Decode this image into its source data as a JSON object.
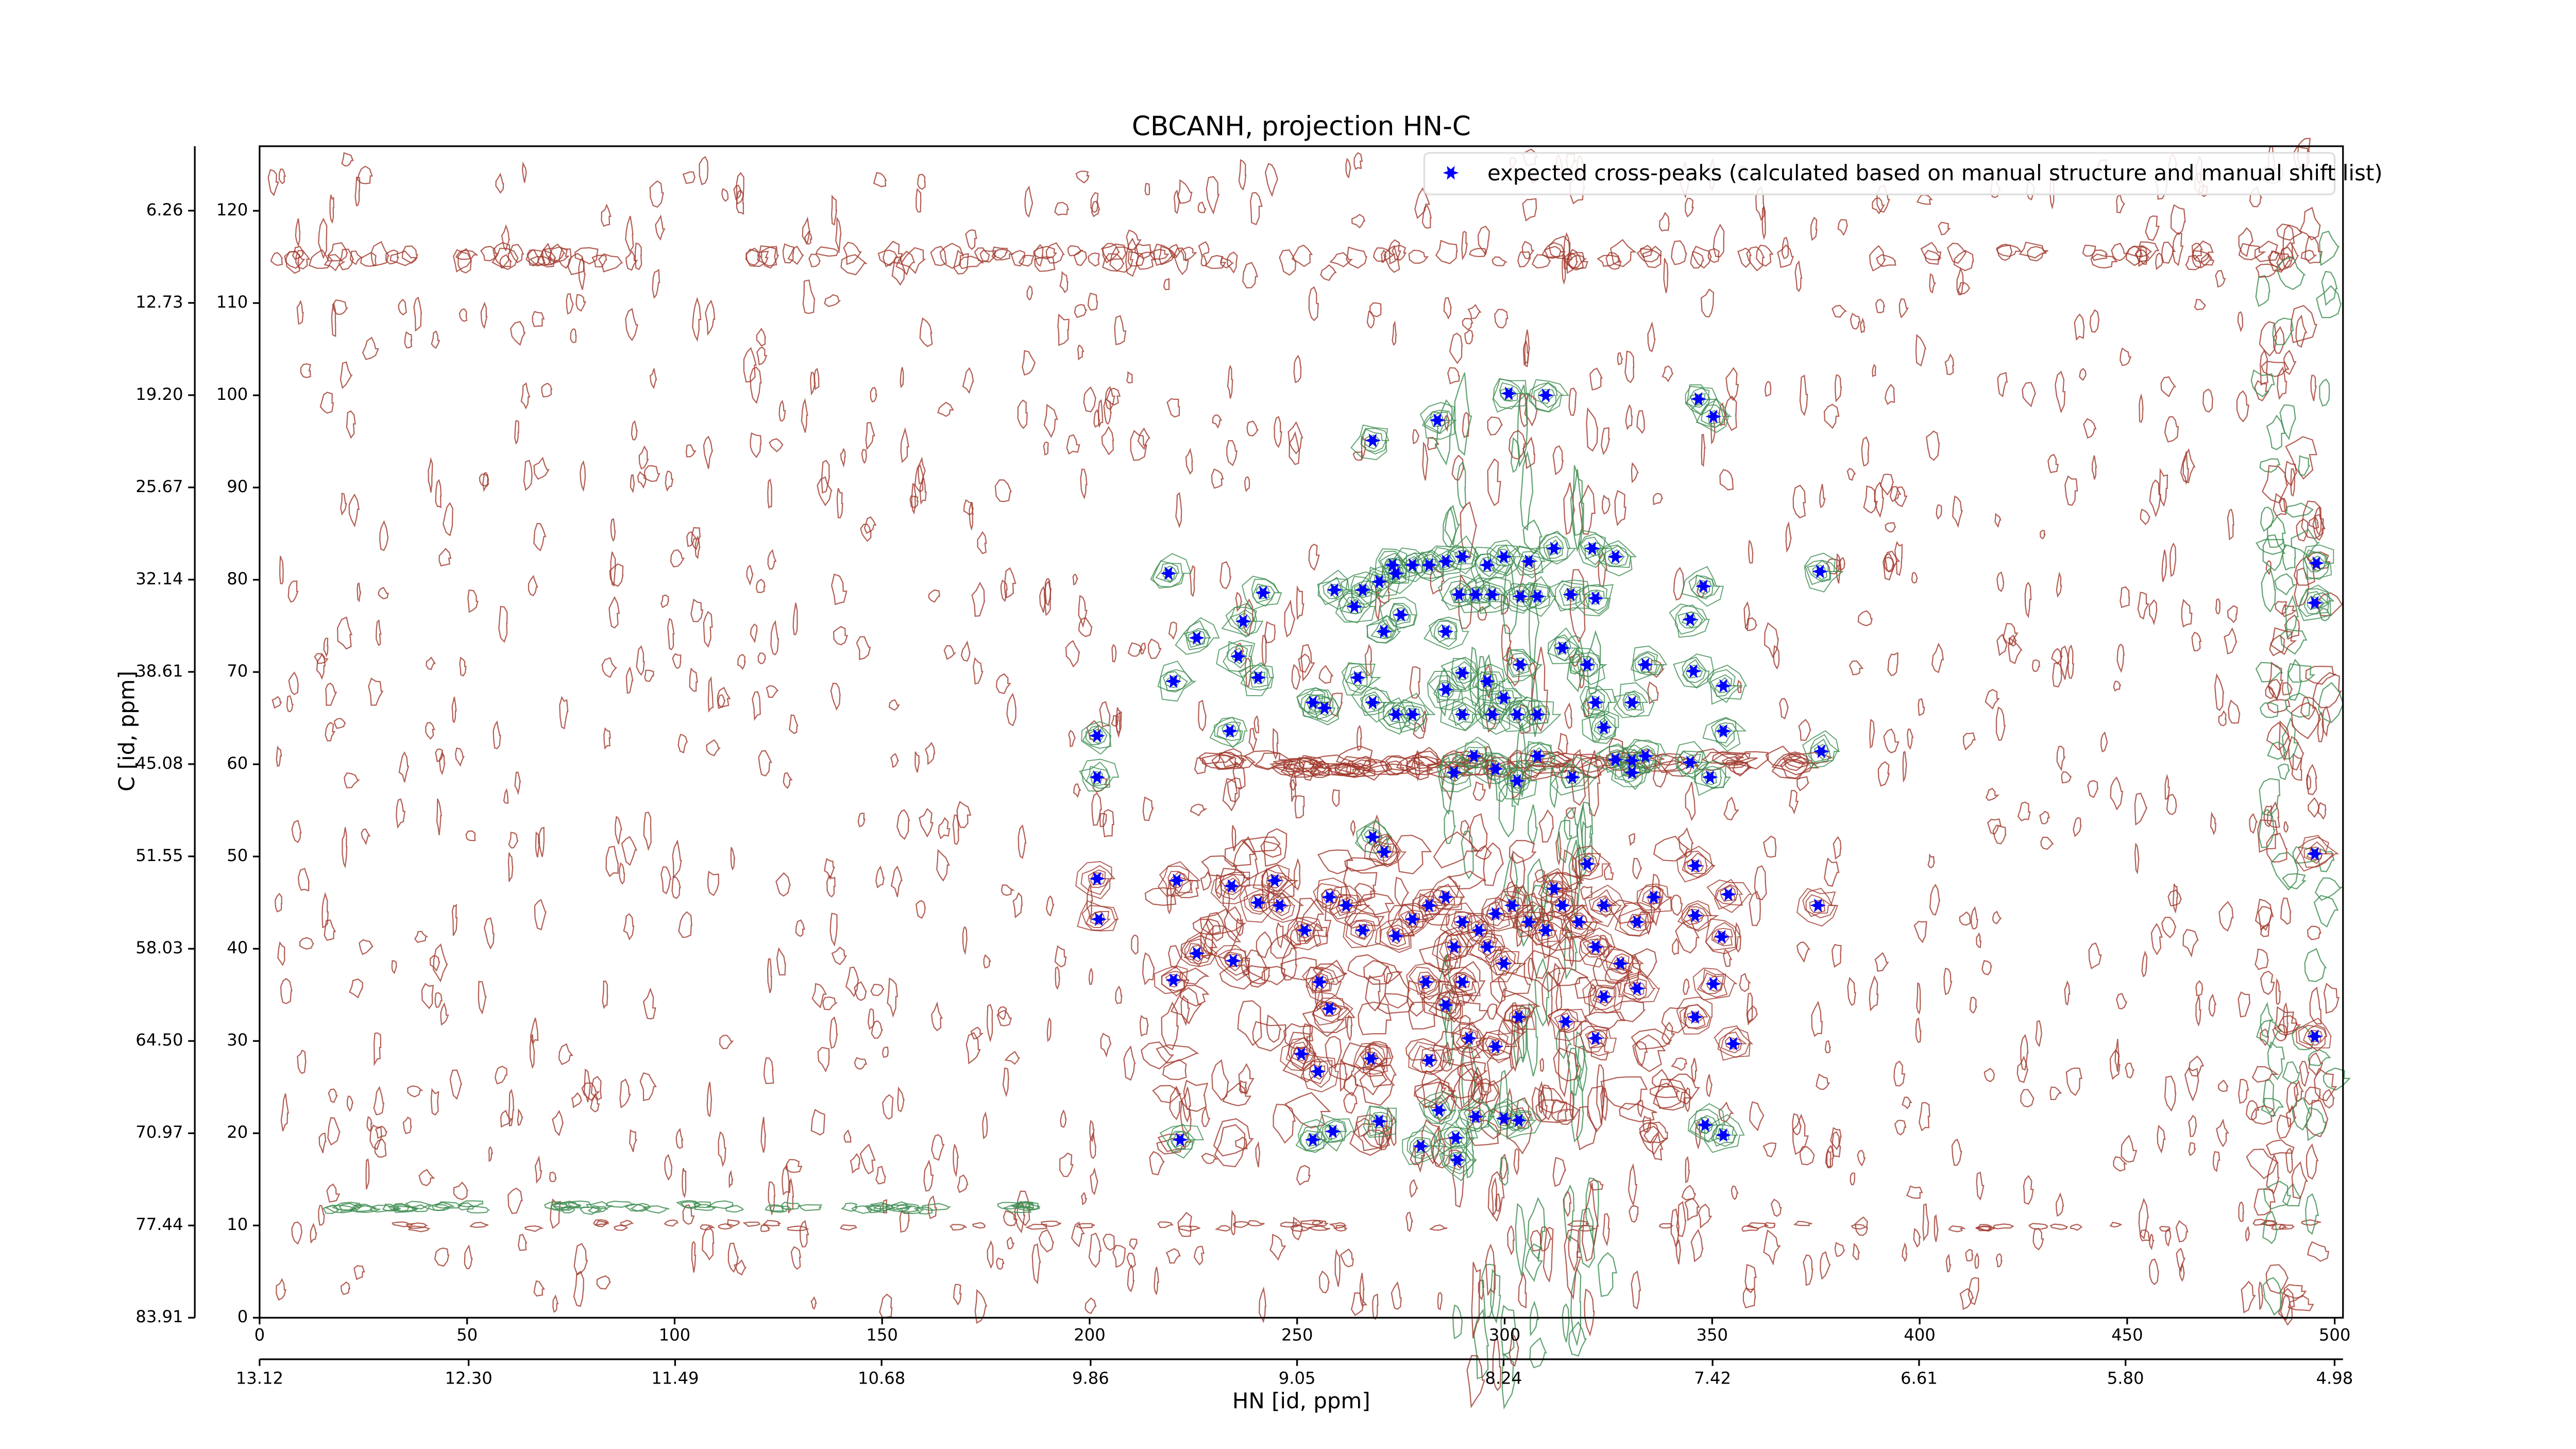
{
  "chart_data": {
    "type": "scatter",
    "title": "CBCANH, projection HN-C",
    "x_label": "HN [id, ppm]",
    "y_label": "C [id, ppm]",
    "xlim": [
      0,
      502
    ],
    "ylim": [
      0,
      127
    ],
    "xticks": [
      0,
      50,
      100,
      150,
      200,
      250,
      300,
      350,
      400,
      450,
      500
    ],
    "yticks": [
      0,
      10,
      20,
      30,
      40,
      50,
      60,
      70,
      80,
      90,
      100,
      110,
      120
    ],
    "x2lim": [
      13.12,
      4.947
    ],
    "x2ticks": [
      13.12,
      12.3,
      11.49,
      10.68,
      9.86,
      9.05,
      8.24,
      7.42,
      6.61,
      5.8,
      4.98
    ],
    "x2tick_labels": [
      "13.12",
      "12.30",
      "11.49",
      "10.68",
      "9.86",
      "9.05",
      "8.24",
      "7.42",
      "6.61",
      "5.80",
      "4.98"
    ],
    "y2lim": [
      83.91,
      1.74
    ],
    "y2ticks": [
      83.91,
      77.44,
      70.97,
      64.5,
      58.03,
      51.55,
      45.08,
      38.61,
      32.14,
      25.67,
      19.2,
      12.73,
      6.26
    ],
    "y2tick_labels": [
      "83.91",
      "77.44",
      "70.97",
      "64.50",
      "58.03",
      "51.55",
      "45.08",
      "38.61",
      "32.14",
      "25.67",
      "19.20",
      "12.73",
      "6.26"
    ],
    "legend": "upper right",
    "x": [
      301,
      309.9,
      346.7,
      350.3,
      268.2,
      283.8,
      219,
      241.8,
      225.8,
      237,
      235.8,
      220.2,
      233.8,
      240.6,
      259,
      273,
      285.8,
      347.9,
      376,
      344.7,
      345.5,
      352.7,
      352.7,
      344.7,
      349.5,
      376.3,
      375.5,
      345.9,
      353.9,
      345.9,
      352.3,
      350.3,
      345.9,
      355.1,
      348.3,
      352.7,
      201.8,
      201.8,
      201.8,
      202.2,
      221,
      220.2,
      225.8,
      234.2,
      234.6,
      240.6,
      244.6,
      221.8,
      251,
      255,
      255.4,
      257.8,
      253.8,
      258.6,
      268.2,
      271,
      269.8,
      267.8,
      279.8,
      288.2,
      288.6,
      293,
      299.8,
      303.4,
      284.2,
      281.8,
      291.4,
      297.8,
      303.4,
      285.8,
      281,
      289.8,
      273.8,
      277.8,
      281.8,
      285.8,
      289.8,
      293.8,
      297.8,
      301.8,
      305.8,
      309.9,
      313.9,
      317.9,
      321.9,
      323.9,
      327.9,
      331.9,
      335.9,
      331.9,
      323.9,
      321.9,
      314.7,
      311.9,
      319.9,
      295.8,
      299.8,
      287.8,
      265.8,
      261.8,
      257.8,
      251.8,
      245.8,
      287.8,
      297.8,
      303,
      307.9,
      316.3,
      326.7,
      330.7,
      333.9,
      292.6,
      313.9,
      321.1,
      326.7,
      311.9,
      305.8,
      299.8,
      295.8,
      289.8,
      285.8,
      281.8,
      277.8,
      273.8,
      269.8,
      265.8,
      263.8,
      270.9,
      275,
      289,
      293,
      297,
      303.8,
      307.9,
      315.9,
      321.9,
      285.8,
      289.8,
      295.8,
      299.8,
      303.8,
      307.9,
      303,
      297,
      289.8,
      277.8,
      273.8,
      268.2,
      264.6,
      256.6,
      253.8,
      321.9,
      323.9,
      330.7,
      333.9,
      319.9,
      330.7,
      495.6,
      495.2,
      495.2,
      495.2
    ],
    "series": [
      {
        "name": "expected cross-peaks (calculated based on manual structure and manual shift list)",
        "color": "#0000ff",
        "values": [
          100.2,
          100,
          99.6,
          97.7,
          95.1,
          97.3,
          80.7,
          78.6,
          73.7,
          75.5,
          71.7,
          69,
          63.6,
          69.4,
          78.9,
          81.6,
          74.4,
          79.3,
          80.9,
          75.7,
          70.1,
          68.5,
          63.6,
          60.2,
          58.6,
          61.4,
          44.7,
          49,
          45.9,
          43.6,
          41.3,
          36.2,
          32.6,
          29.7,
          20.9,
          19.8,
          63.1,
          58.6,
          47.6,
          43.2,
          47.4,
          36.6,
          39.5,
          46.8,
          38.7,
          45,
          47.4,
          19.3,
          28.6,
          26.7,
          36.4,
          33.5,
          19.3,
          20.2,
          52.1,
          50.5,
          21.3,
          28.1,
          18.6,
          19.5,
          17.1,
          21.8,
          21.6,
          21.4,
          22.5,
          27.9,
          30.3,
          29.4,
          32.6,
          33.9,
          36.4,
          36.4,
          41.4,
          43.2,
          44.7,
          45.6,
          42.9,
          42,
          43.8,
          44.7,
          42.9,
          42,
          44.7,
          42.9,
          40.2,
          44.7,
          38.4,
          42.9,
          45.6,
          35.7,
          34.8,
          30.3,
          32.1,
          46.5,
          49.2,
          40.2,
          38.4,
          40.2,
          42,
          44.7,
          45.6,
          42,
          44.7,
          59.1,
          59.5,
          58.2,
          60.9,
          58.6,
          60.5,
          59.1,
          60.9,
          60.9,
          72.6,
          83.4,
          82.5,
          83.4,
          82,
          82.5,
          81.6,
          82.5,
          82,
          81.6,
          81.6,
          80.7,
          79.8,
          78.9,
          77.1,
          74.4,
          76.2,
          78.4,
          78.4,
          78.4,
          78.2,
          78.2,
          78.4,
          78,
          68.1,
          69.9,
          69,
          67.2,
          70.8,
          65.4,
          65.4,
          65.4,
          65.4,
          65.4,
          65.4,
          66.7,
          69.4,
          66.1,
          66.7,
          66.7,
          64,
          66.7,
          70.8,
          70.8,
          60.4,
          81.8,
          77.5,
          50.3,
          30.5
        ]
      }
    ]
  }
}
